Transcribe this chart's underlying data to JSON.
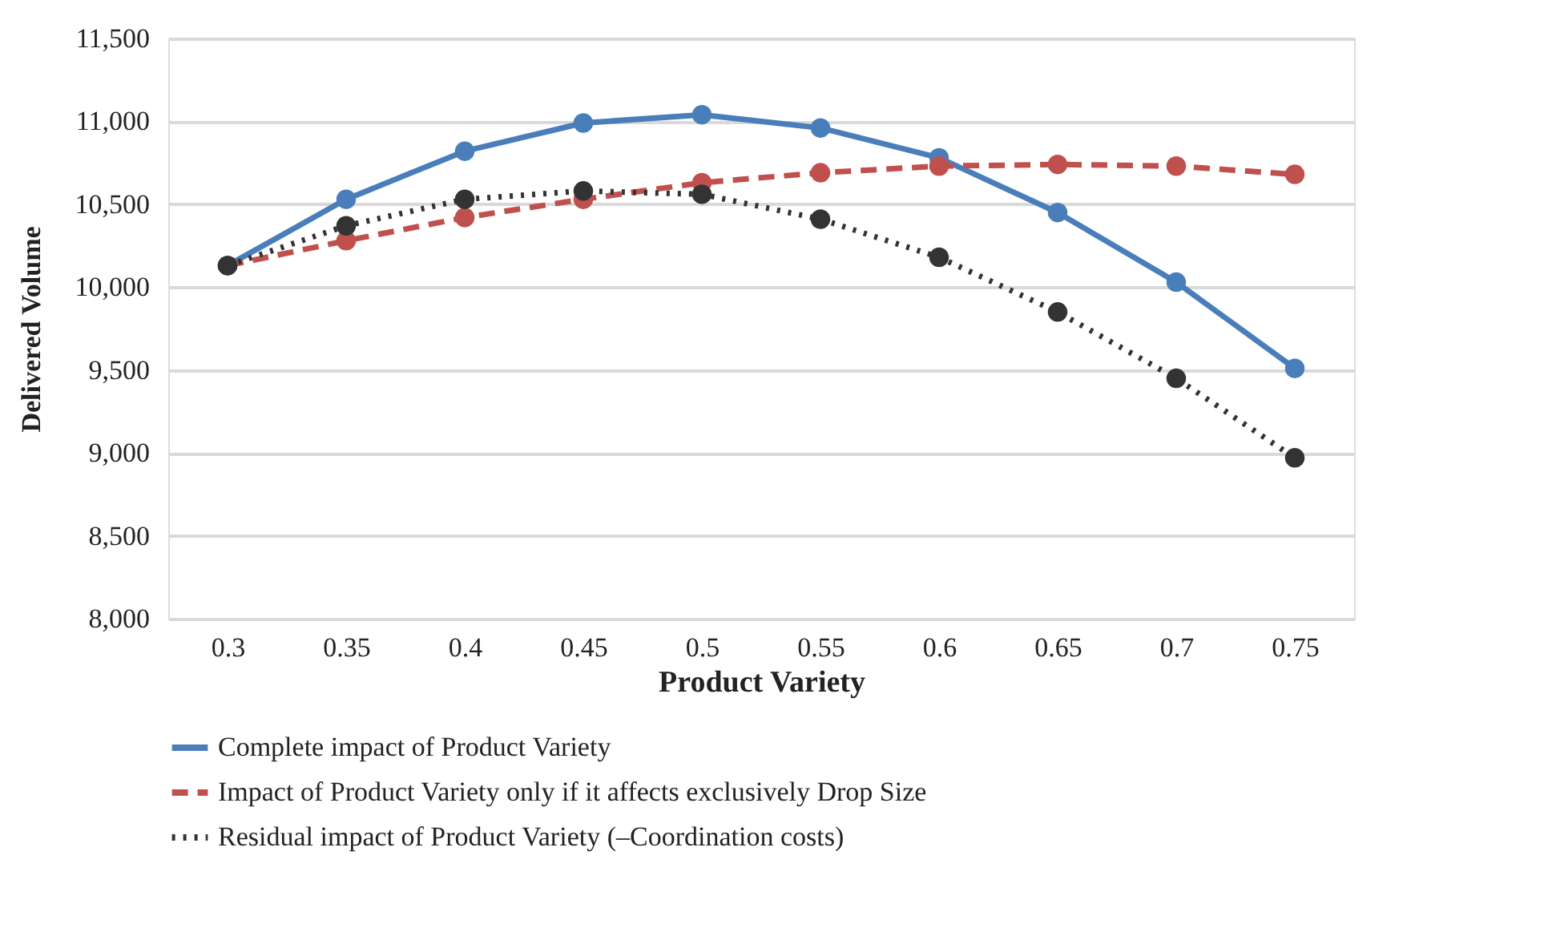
{
  "chart_data": {
    "type": "line",
    "xlabel": "Product Variety",
    "ylabel": "Delivered Volume",
    "categories": [
      "0.3",
      "0.35",
      "0.4",
      "0.45",
      "0.5",
      "0.55",
      "0.6",
      "0.65",
      "0.7",
      "0.75"
    ],
    "series": [
      {
        "name": "Complete impact of Product Variety",
        "color": "#4a7ebb",
        "line_style": "solid",
        "values": [
          10130,
          10530,
          10820,
          10990,
          11040,
          10960,
          10780,
          10450,
          10030,
          9510
        ]
      },
      {
        "name": "Impact of Product Variety only if it affects exclusively Drop Size",
        "color": "#c0504d",
        "line_style": "dashed",
        "values": [
          10130,
          10280,
          10420,
          10530,
          10630,
          10690,
          10730,
          10740,
          10730,
          10680
        ]
      },
      {
        "name": "Residual impact of Product Variety (–Coordination costs)",
        "color": "#333333",
        "line_style": "dotted",
        "values": [
          10130,
          10370,
          10530,
          10580,
          10560,
          10410,
          10180,
          9850,
          9450,
          8970
        ]
      }
    ],
    "ylim": [
      8000,
      11500
    ],
    "yticks": [
      {
        "value": 8000,
        "label": "8,000"
      },
      {
        "value": 8500,
        "label": "8,500"
      },
      {
        "value": 9000,
        "label": "9,000"
      },
      {
        "value": 9500,
        "label": "9,500"
      },
      {
        "value": 10000,
        "label": "10,000"
      },
      {
        "value": 10500,
        "label": "10,500"
      },
      {
        "value": 11000,
        "label": "11,000"
      },
      {
        "value": 11500,
        "label": "11,500"
      }
    ],
    "grid": "y",
    "legend": "bottom",
    "marker": "circle"
  }
}
